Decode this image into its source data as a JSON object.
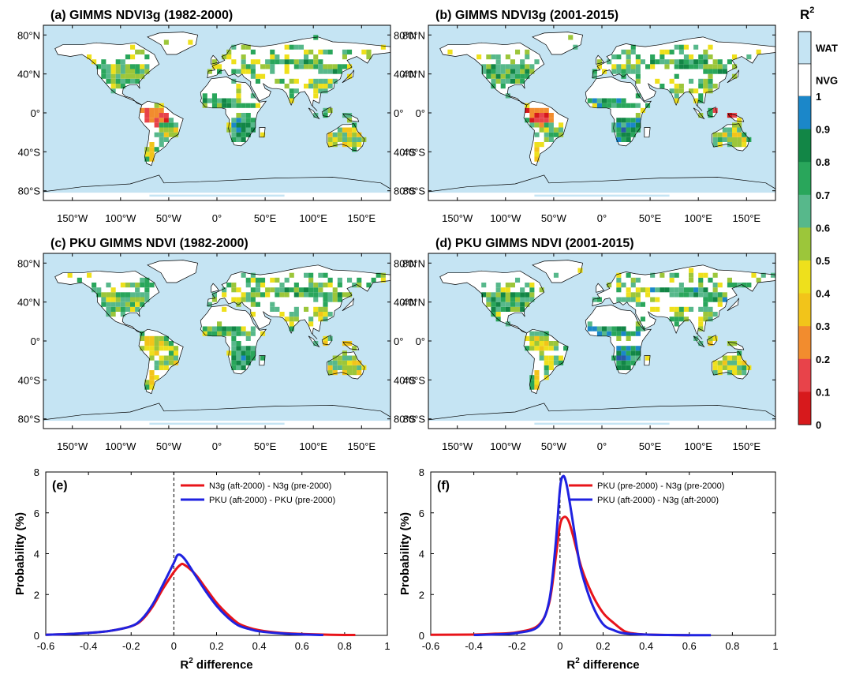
{
  "colors": {
    "water": "#c5e4f3",
    "nvg": "#ffffff",
    "coast": "#000000",
    "pre_series": "#e8141a",
    "aft_series": "#1f22e0",
    "colorbar": [
      "#d7191c",
      "#e8434a",
      "#f28c2e",
      "#f2c41a",
      "#eee01c",
      "#9cc63a",
      "#57b88b",
      "#29a65b",
      "#128646",
      "#1b87c9",
      "#2859a8"
    ]
  },
  "maps": [
    {
      "label": "(a) GIMMS NDVI3g (1982-2000)",
      "tropics_value": 0.05
    },
    {
      "label": "(b) GIMMS NDVI3g (2001-2015)",
      "tropics_value": 0.05
    },
    {
      "label": "(c) PKU GIMMS NDVI (1982-2000)",
      "tropics_value": 0.3
    },
    {
      "label": "(d) PKU GIMMS NDVI (2001-2015)",
      "tropics_value": 0.35
    }
  ],
  "map_axes": {
    "lon_ticks": [
      "150°W",
      "100°W",
      "50°W",
      "0°",
      "50°E",
      "100°E",
      "150°E"
    ],
    "lon_values": [
      -150,
      -100,
      -50,
      0,
      50,
      100,
      150
    ],
    "lat_ticks": [
      "80°N",
      "40°N",
      "0°",
      "40°S",
      "80°S"
    ],
    "lat_values": [
      80,
      40,
      0,
      -40,
      -80
    ],
    "lon_range": [
      -180,
      180
    ],
    "lat_range": [
      -90,
      90
    ]
  },
  "colorbar": {
    "title": "R",
    "title_sup": "2",
    "categories": [
      "WAT",
      "NVG"
    ],
    "ticks": [
      "1",
      "0.9",
      "0.8",
      "0.7",
      "0.6",
      "0.5",
      "0.4",
      "0.3",
      "0.2",
      "0.1",
      "0"
    ],
    "tick_values": [
      1,
      0.9,
      0.8,
      0.7,
      0.6,
      0.5,
      0.4,
      0.3,
      0.2,
      0.1,
      0
    ]
  },
  "chart_data": [
    {
      "type": "line",
      "label": "(e)",
      "xlabel": "R",
      "xlabel_sup": "2",
      "xlabel_rest": " difference",
      "ylabel": "Probability (%)",
      "xlim": [
        -0.6,
        1
      ],
      "ylim": [
        0,
        8
      ],
      "xticks": [
        -0.6,
        -0.4,
        -0.2,
        0,
        0.2,
        0.4,
        0.6,
        0.8,
        1
      ],
      "xtick_labels": [
        "-0.6",
        "-0.4",
        "-0.2",
        "0",
        "0.2",
        "0.4",
        "0.6",
        "0.8",
        "1"
      ],
      "yticks": [
        0,
        2,
        4,
        6,
        8
      ],
      "ytick_labels": [
        "0",
        "2",
        "4",
        "6",
        "8"
      ],
      "vline_x": 0,
      "legend_position": "top-right",
      "series": [
        {
          "name": "N3g (aft-2000) - N3g (pre-2000)",
          "color_key": "pre_series",
          "x": [
            -0.6,
            -0.5,
            -0.4,
            -0.3,
            -0.2,
            -0.15,
            -0.1,
            -0.05,
            0,
            0.03,
            0.05,
            0.1,
            0.15,
            0.2,
            0.25,
            0.3,
            0.35,
            0.4,
            0.5,
            0.6,
            0.7,
            0.8,
            0.85
          ],
          "y": [
            0.03,
            0.06,
            0.12,
            0.22,
            0.45,
            0.75,
            1.4,
            2.3,
            3.1,
            3.45,
            3.45,
            3.0,
            2.3,
            1.6,
            1.05,
            0.6,
            0.38,
            0.25,
            0.12,
            0.07,
            0.04,
            0.02,
            0.02
          ]
        },
        {
          "name": "PKU (aft-2000) - PKU (pre-2000)",
          "color_key": "aft_series",
          "x": [
            -0.6,
            -0.5,
            -0.4,
            -0.3,
            -0.2,
            -0.15,
            -0.1,
            -0.05,
            0,
            0.02,
            0.05,
            0.1,
            0.15,
            0.2,
            0.25,
            0.3,
            0.35,
            0.4,
            0.5,
            0.6,
            0.7
          ],
          "y": [
            0.03,
            0.06,
            0.12,
            0.22,
            0.45,
            0.8,
            1.5,
            2.5,
            3.55,
            3.95,
            3.75,
            2.95,
            2.15,
            1.45,
            0.9,
            0.5,
            0.32,
            0.2,
            0.1,
            0.05,
            0.02
          ]
        }
      ]
    },
    {
      "type": "line",
      "label": "(f)",
      "xlabel": "R",
      "xlabel_sup": "2",
      "xlabel_rest": " difference",
      "ylabel": "Probability (%)",
      "xlim": [
        -0.6,
        1
      ],
      "ylim": [
        0,
        8
      ],
      "xticks": [
        -0.6,
        -0.4,
        -0.2,
        0,
        0.2,
        0.4,
        0.6,
        0.8,
        1
      ],
      "xtick_labels": [
        "-0.6",
        "-0.4",
        "-0.2",
        "0",
        "0.2",
        "0.4",
        "0.6",
        "0.8",
        "1"
      ],
      "yticks": [
        0,
        2,
        4,
        6,
        8
      ],
      "ytick_labels": [
        "0",
        "2",
        "4",
        "6",
        "8"
      ],
      "vline_x": 0,
      "legend_position": "top-right",
      "series": [
        {
          "name": "PKU (pre-2000) - N3g (pre-2000)",
          "color_key": "pre_series",
          "x": [
            -0.6,
            -0.4,
            -0.3,
            -0.2,
            -0.1,
            -0.05,
            -0.02,
            0,
            0.02,
            0.04,
            0.06,
            0.1,
            0.15,
            0.2,
            0.25,
            0.3,
            0.35,
            0.4,
            0.5,
            0.6
          ],
          "y": [
            0.03,
            0.04,
            0.08,
            0.15,
            0.5,
            1.6,
            3.8,
            5.4,
            5.8,
            5.6,
            4.9,
            3.3,
            2.0,
            1.1,
            0.6,
            0.2,
            0.08,
            0.04,
            0.02,
            0.01
          ]
        },
        {
          "name": "PKU (aft-2000) - N3g (aft-2000)",
          "color_key": "aft_series",
          "x": [
            -0.4,
            -0.3,
            -0.2,
            -0.1,
            -0.05,
            -0.02,
            0,
            0.015,
            0.03,
            0.05,
            0.08,
            0.1,
            0.15,
            0.2,
            0.25,
            0.3,
            0.4,
            0.5,
            0.6,
            0.7
          ],
          "y": [
            0.02,
            0.05,
            0.12,
            0.45,
            1.7,
            4.5,
            7.2,
            7.8,
            7.4,
            6.2,
            4.2,
            3.1,
            1.5,
            0.55,
            0.25,
            0.1,
            0.04,
            0.02,
            0.01,
            0.01
          ]
        }
      ]
    }
  ]
}
